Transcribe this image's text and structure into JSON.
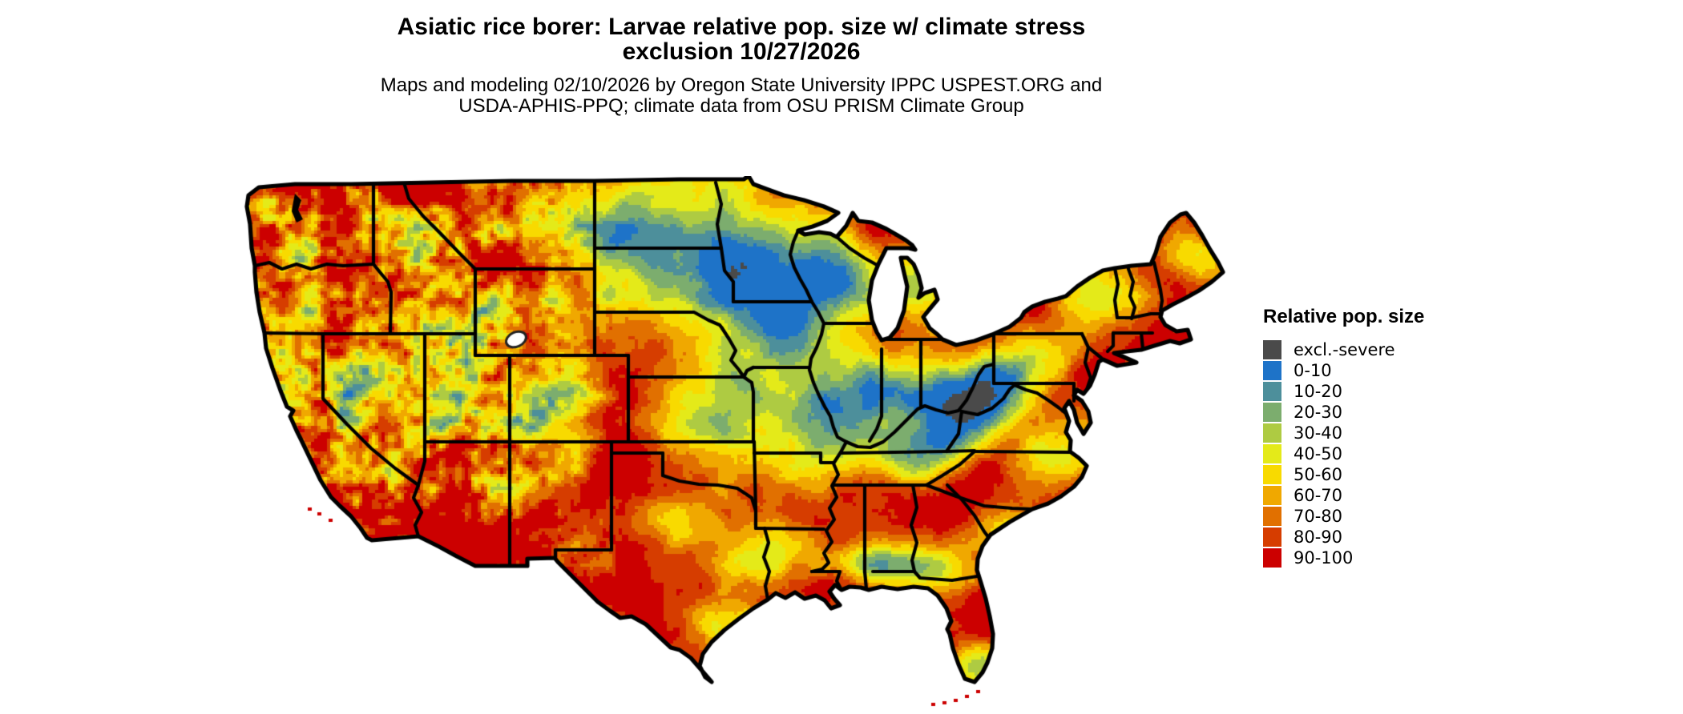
{
  "header": {
    "title": "Asiatic rice borer: Larvae relative pop. size w/ climate stress\nexclusion 10/27/2026",
    "subtitle": "Maps and modeling 02/10/2026 by Oregon State University IPPC USPEST.ORG and\nUSDA-APHIS-PPQ; climate data from OSU PRISM Climate Group"
  },
  "legend": {
    "title": "Relative pop. size",
    "entries": [
      {
        "label": "excl.-severe",
        "color": "#4a4a4a"
      },
      {
        "label": "0-10",
        "color": "#1e73c8"
      },
      {
        "label": "10-20",
        "color": "#4d8f9b"
      },
      {
        "label": "20-30",
        "color": "#7cad6e"
      },
      {
        "label": "30-40",
        "color": "#aecb42"
      },
      {
        "label": "40-50",
        "color": "#e4ea19"
      },
      {
        "label": "50-60",
        "color": "#f8da00"
      },
      {
        "label": "60-70",
        "color": "#f0a800"
      },
      {
        "label": "70-80",
        "color": "#e17000"
      },
      {
        "label": "80-90",
        "color": "#d63d00"
      },
      {
        "label": "90-100",
        "color": "#cc0000"
      }
    ]
  },
  "map": {
    "border_color": "#000000",
    "water_color": "#ffffff"
  },
  "chart_data": {
    "type": "heatmap",
    "title": "Asiatic rice borer: Larvae relative pop. size w/ climate stress exclusion 10/27/2026",
    "subtitle": "Maps and modeling 02/10/2026 by Oregon State University IPPC USPEST.ORG and USDA-APHIS-PPQ; climate data from OSU PRISM Climate Group",
    "legend_title": "Relative pop. size",
    "region": "Conterminous United States with state boundaries",
    "date_shown": "10/27/2026",
    "categories": [
      "excl.-severe",
      "0-10",
      "10-20",
      "20-30",
      "30-40",
      "40-50",
      "50-60",
      "60-70",
      "70-80",
      "80-90",
      "90-100"
    ],
    "colors": [
      "#4a4a4a",
      "#1e73c8",
      "#4d8f9b",
      "#7cad6e",
      "#aecb42",
      "#e4ea19",
      "#f8da00",
      "#f0a800",
      "#e17000",
      "#d63d00",
      "#cc0000"
    ],
    "dominant_class": "90-100",
    "legend_position": "right"
  }
}
